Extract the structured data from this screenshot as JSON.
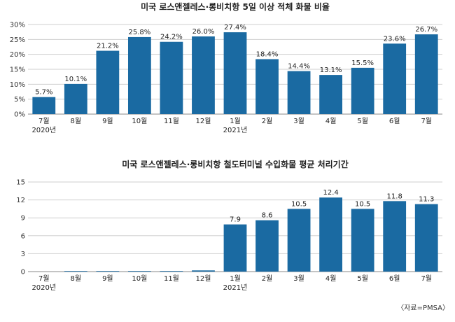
{
  "chart_data": [
    {
      "type": "bar",
      "title": "미국 로스앤젤레스·롱비치항 5일 이상 적체 화물 비율",
      "categories": [
        "7월",
        "8월",
        "9월",
        "10월",
        "11월",
        "12월",
        "1월",
        "2월",
        "3월",
        "4월",
        "5월",
        "6월",
        "7월"
      ],
      "year_labels": [
        "2020년",
        "",
        "",
        "",
        "",
        "",
        "2021년",
        "",
        "",
        "",
        "",
        "",
        ""
      ],
      "values": [
        5.7,
        10.1,
        21.2,
        25.8,
        24.2,
        26.0,
        27.4,
        18.4,
        14.4,
        13.1,
        15.5,
        23.6,
        26.7
      ],
      "value_labels": [
        "5.7%",
        "10.1%",
        "21.2%",
        "25.8%",
        "24.2%",
        "26.0%",
        "27.4%",
        "18.4%",
        "14.4%",
        "13.1%",
        "15.5%",
        "23.6%",
        "26.7%"
      ],
      "yticks": [
        0,
        5,
        10,
        15,
        20,
        25,
        30
      ],
      "ytick_labels": [
        "0%",
        "5%",
        "10%",
        "15%",
        "20%",
        "25%",
        "30%"
      ],
      "ylim": [
        0,
        30
      ],
      "xlabel": "",
      "ylabel": "",
      "grid": true,
      "bar_color": "#1a6aa2"
    },
    {
      "type": "bar",
      "title": "미국 로스앤젤레스·롱비치항 철도터미널 수입화물 평균 처리기간",
      "categories": [
        "7월",
        "8월",
        "9월",
        "10월",
        "11월",
        "12월",
        "1월",
        "2월",
        "3월",
        "4월",
        "5월",
        "6월",
        "7월"
      ],
      "year_labels": [
        "2020년",
        "",
        "",
        "",
        "",
        "",
        "2021년",
        "",
        "",
        "",
        "",
        "",
        ""
      ],
      "values": [
        0,
        0.1,
        0.1,
        0.1,
        0.1,
        0.2,
        7.9,
        8.6,
        10.5,
        12.4,
        10.5,
        11.8,
        11.3
      ],
      "value_labels": [
        "",
        "",
        "",
        "",
        "",
        "",
        "7.9",
        "8.6",
        "10.5",
        "12.4",
        "10.5",
        "11.8",
        "11.3"
      ],
      "yticks": [
        0,
        3,
        6,
        9,
        12,
        15
      ],
      "ytick_labels": [
        "0",
        "3",
        "6",
        "9",
        "12",
        "15"
      ],
      "ylim": [
        0,
        15
      ],
      "xlabel": "",
      "ylabel": "",
      "grid": true,
      "bar_color": "#1a6aa2"
    }
  ],
  "source": "〈자료=PMSA〉"
}
